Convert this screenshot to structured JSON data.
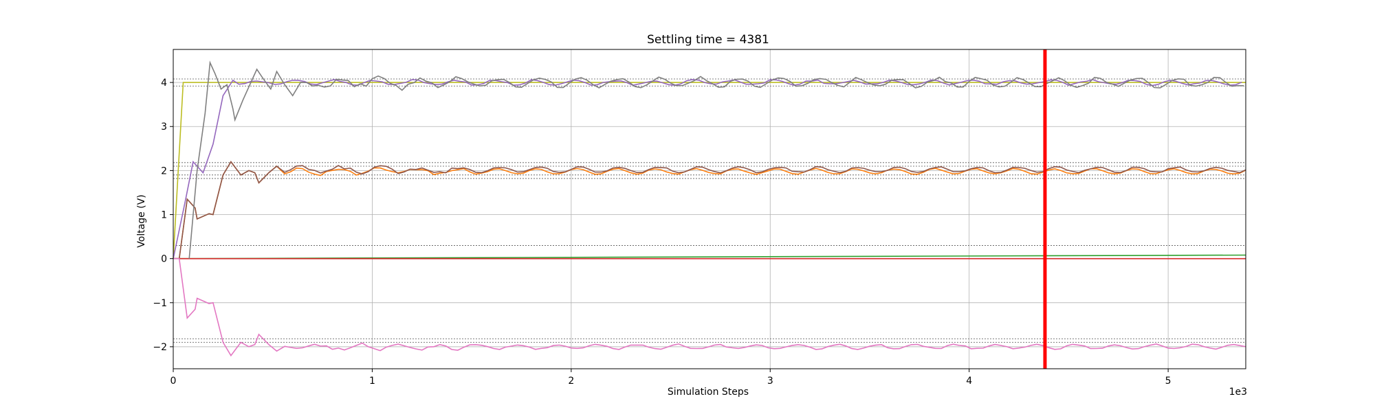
{
  "chart_data": {
    "type": "line",
    "title": "Settling time = 4381",
    "xlabel": "Simulation Steps",
    "ylabel": "Voltage (V)",
    "x_offset_text": "1e3",
    "xlim": [
      0,
      5390
    ],
    "ylim": [
      -2.5,
      4.75
    ],
    "x_scale_factor": 1000,
    "xticks": [
      0,
      1000,
      2000,
      3000,
      4000,
      5000
    ],
    "xtick_labels": [
      "0",
      "1",
      "2",
      "3",
      "4",
      "5"
    ],
    "yticks": [
      -2,
      -1,
      0,
      1,
      2,
      3,
      4
    ],
    "ytick_labels": [
      "−2",
      "−1",
      "0",
      "1",
      "2",
      "3",
      "4"
    ],
    "grid": true,
    "settling_time": 4381,
    "settling_line_color": "#ff0000",
    "tolerance_bands": [
      4.08,
      3.92,
      2.18,
      2.1,
      1.9,
      1.82,
      0.3,
      -1.82,
      -1.9
    ],
    "series": [
      {
        "color": "#bcbd22",
        "kind": "step",
        "x": [
          0,
          50,
          5390
        ],
        "y": [
          0,
          4.0,
          4.0
        ]
      },
      {
        "color": "#2ca02c",
        "kind": "linear",
        "x": [
          0,
          5390
        ],
        "y": [
          0.0,
          0.08
        ]
      },
      {
        "color": "#d62728",
        "kind": "linear",
        "x": [
          0,
          5390
        ],
        "y": [
          0.0,
          0.0
        ]
      },
      {
        "color": "#ff7f0e",
        "kind": "osc",
        "start": 100,
        "settle": 2.0,
        "amp": 0.06,
        "period": 200,
        "decay": 0,
        "jitter": 0.02,
        "phase": 0.7,
        "offset": -0.02
      },
      {
        "color": "#8c564b",
        "kind": "osc",
        "start": 100,
        "settle": 2.0,
        "amp": 0.06,
        "period": 200,
        "decay": 0,
        "jitter": 0.03,
        "phase": 0.2,
        "offset": 0.02
      },
      {
        "color": "#9467bd",
        "kind": "rise",
        "x": [
          0,
          60,
          100,
          150,
          200,
          250,
          300
        ],
        "y": [
          0,
          1.3,
          2.2,
          1.95,
          2.6,
          3.7,
          4.05
        ]
      },
      {
        "color": "#e377c2",
        "kind": "osc_neg",
        "start": 100,
        "settle": -2.0,
        "amp": 0.05,
        "period": 200,
        "jitter": 0.03,
        "phase": 0.5
      },
      {
        "color": "#7f7f7f",
        "kind": "osc_grey",
        "start": 80,
        "settle": 4.0,
        "amp": 0.1,
        "period": 200,
        "jitter": 0.05,
        "phase": 0.1
      }
    ]
  }
}
